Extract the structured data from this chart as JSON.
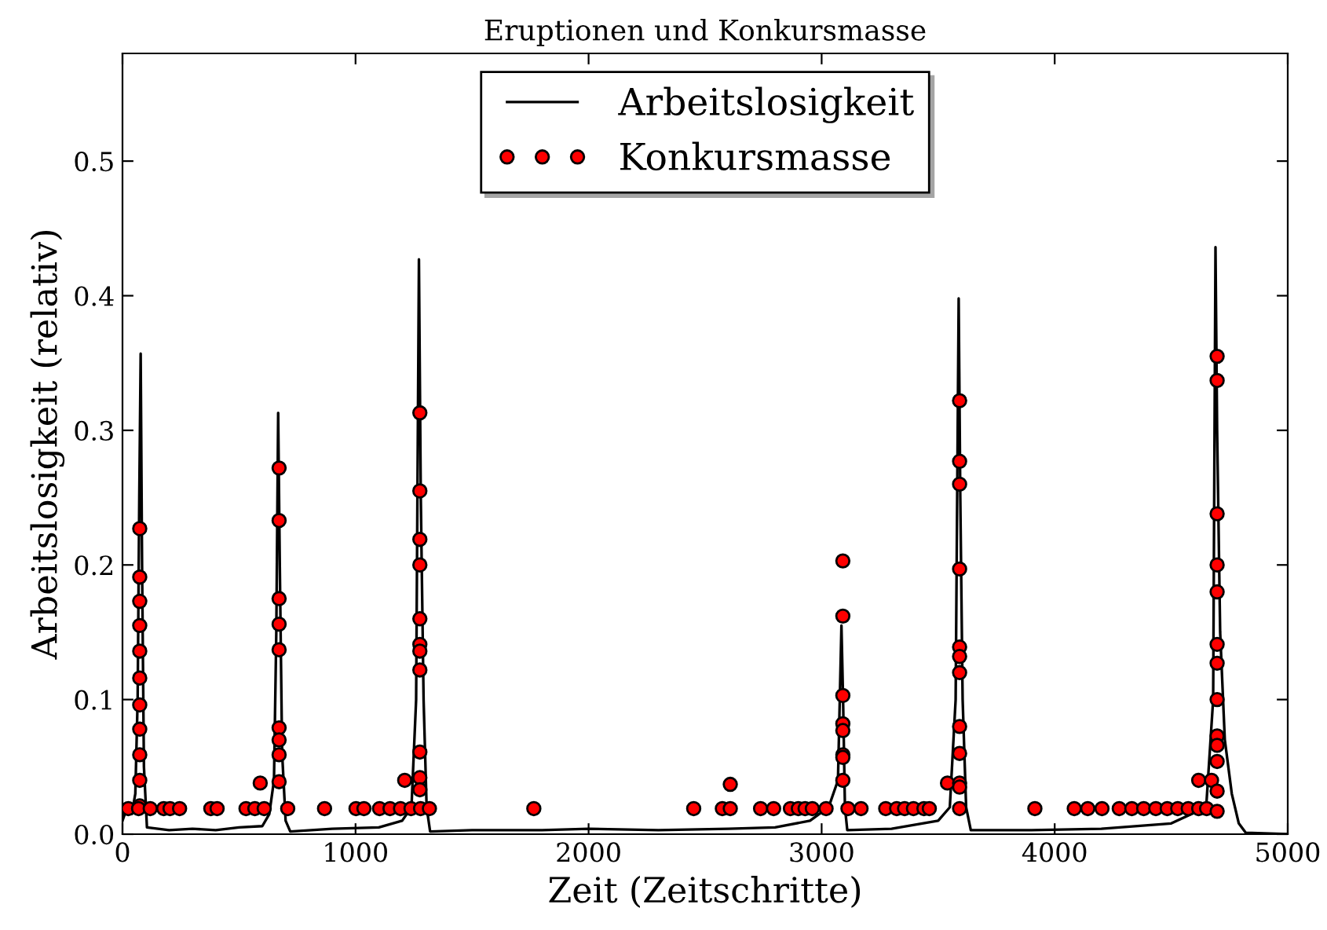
{
  "chart_data": {
    "type": "line",
    "title": "Eruptionen und Konkursmasse",
    "xlabel": "Zeit (Zeitschritte)",
    "ylabel": "Arbeitslosigkeit (relativ)",
    "xlim": [
      0,
      5000
    ],
    "xticks": [
      0,
      1000,
      2000,
      3000,
      4000,
      5000
    ],
    "ylim": [
      0,
      0.58
    ],
    "yticks": [
      {
        "value": 0,
        "label": "0.0"
      },
      0.1,
      0.2,
      0.3,
      0.4,
      0.5
    ],
    "grid": false,
    "legend": "top",
    "series": [
      {
        "name": "Arbeitslosigkeit",
        "color": "#000000",
        "marker": "none",
        "line_style": "solid",
        "x": [
          0,
          20,
          40,
          55,
          65,
          72,
          78,
          84,
          92,
          105,
          200,
          300,
          400,
          500,
          600,
          630,
          650,
          660,
          668,
          675,
          685,
          700,
          720,
          900,
          1100,
          1200,
          1240,
          1260,
          1272,
          1280,
          1292,
          1305,
          1320,
          1500,
          1800,
          2000,
          2300,
          2600,
          2800,
          2950,
          3030,
          3070,
          3085,
          3092,
          3100,
          3110,
          3300,
          3500,
          3550,
          3575,
          3588,
          3595,
          3605,
          3620,
          3640,
          3900,
          4200,
          4500,
          4650,
          4680,
          4690,
          4697,
          4710,
          4730,
          4760,
          4790,
          4820,
          5000
        ],
        "values": [
          0.01,
          0.02,
          0.015,
          0.03,
          0.1,
          0.25,
          0.357,
          0.2,
          0.05,
          0.005,
          0.003,
          0.004,
          0.003,
          0.005,
          0.006,
          0.015,
          0.04,
          0.15,
          0.313,
          0.2,
          0.06,
          0.01,
          0.002,
          0.004,
          0.005,
          0.01,
          0.02,
          0.1,
          0.427,
          0.25,
          0.1,
          0.02,
          0.002,
          0.003,
          0.003,
          0.004,
          0.003,
          0.004,
          0.005,
          0.01,
          0.02,
          0.04,
          0.155,
          0.1,
          0.02,
          0.003,
          0.004,
          0.01,
          0.02,
          0.1,
          0.398,
          0.25,
          0.1,
          0.02,
          0.003,
          0.003,
          0.004,
          0.008,
          0.02,
          0.1,
          0.436,
          0.3,
          0.15,
          0.07,
          0.03,
          0.008,
          0.001,
          0.0
        ]
      },
      {
        "name": "Konkursmasse",
        "type": "scatter",
        "color": "#ff0000",
        "marker": "circle",
        "x": [
          74,
          74,
          74,
          74,
          74,
          74,
          74,
          74,
          74,
          74,
          74,
          25,
          69,
          119,
          177,
          204,
          245,
          379,
          406,
          530,
          568,
          591,
          608,
          672,
          672,
          672,
          672,
          672,
          672,
          672,
          672,
          672,
          709,
          867,
          1002,
          1036,
          1103,
          1148,
          1193,
          1211,
          1238,
          1276,
          1276,
          1276,
          1276,
          1276,
          1276,
          1276,
          1276,
          1276,
          1276,
          1276,
          1279,
          1317,
          1765,
          2451,
          2574,
          2608,
          2608,
          2738,
          2794,
          2866,
          2900,
          2929,
          2960,
          3019,
          3091,
          3091,
          3091,
          3091,
          3091,
          3091,
          3091,
          3091,
          3113,
          3169,
          3275,
          3322,
          3356,
          3394,
          3439,
          3462,
          3540,
          3592,
          3592,
          3592,
          3592,
          3592,
          3592,
          3592,
          3592,
          3592,
          3592,
          3592,
          3592,
          3915,
          4084,
          4142,
          4203,
          4277,
          4331,
          4382,
          4434,
          4483,
          4528,
          4573,
          4618,
          4618,
          4652,
          4673,
          4697,
          4697,
          4697,
          4697,
          4697,
          4697,
          4697,
          4697,
          4697,
          4697,
          4697,
          4697,
          4697
        ],
        "values": [
          0.227,
          0.191,
          0.173,
          0.155,
          0.136,
          0.116,
          0.096,
          0.078,
          0.059,
          0.04,
          0.021,
          0.019,
          0.019,
          0.019,
          0.019,
          0.019,
          0.019,
          0.019,
          0.019,
          0.019,
          0.019,
          0.038,
          0.019,
          0.272,
          0.233,
          0.175,
          0.156,
          0.137,
          0.079,
          0.07,
          0.059,
          0.039,
          0.019,
          0.019,
          0.019,
          0.019,
          0.019,
          0.019,
          0.019,
          0.04,
          0.019,
          0.313,
          0.255,
          0.219,
          0.2,
          0.16,
          0.141,
          0.136,
          0.122,
          0.061,
          0.042,
          0.033,
          0.019,
          0.019,
          0.019,
          0.019,
          0.019,
          0.019,
          0.037,
          0.019,
          0.019,
          0.019,
          0.019,
          0.019,
          0.019,
          0.019,
          0.203,
          0.162,
          0.103,
          0.082,
          0.077,
          0.059,
          0.057,
          0.04,
          0.019,
          0.019,
          0.019,
          0.019,
          0.019,
          0.019,
          0.019,
          0.019,
          0.038,
          0.322,
          0.277,
          0.26,
          0.197,
          0.139,
          0.132,
          0.12,
          0.08,
          0.06,
          0.038,
          0.035,
          0.019,
          0.019,
          0.019,
          0.019,
          0.019,
          0.019,
          0.019,
          0.019,
          0.019,
          0.019,
          0.019,
          0.019,
          0.019,
          0.04,
          0.019,
          0.04,
          0.355,
          0.337,
          0.238,
          0.2,
          0.18,
          0.141,
          0.127,
          0.1,
          0.073,
          0.066,
          0.054,
          0.032,
          0.017
        ]
      }
    ]
  }
}
